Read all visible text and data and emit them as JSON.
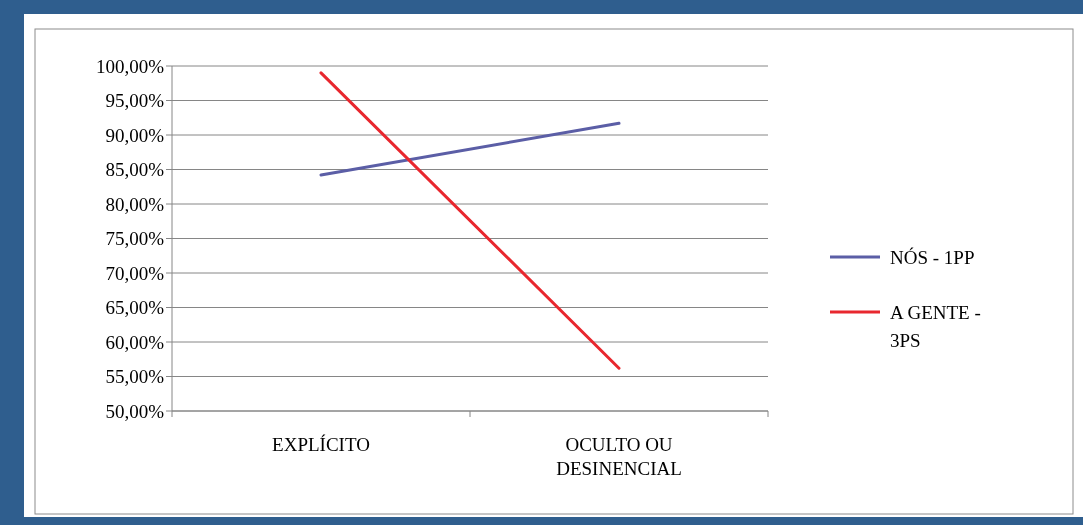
{
  "chart_data": {
    "type": "line",
    "categories": [
      "EXPLÍCITO",
      "OCULTO OU DESINENCIAL"
    ],
    "series": [
      {
        "name": "NÓS - 1PP",
        "color": "#5b5ea6",
        "values": [
          84.2,
          91.7
        ]
      },
      {
        "name": "A GENTE - 3PS",
        "color": "#e8272e",
        "values": [
          99.0,
          56.2
        ]
      }
    ],
    "ylim": [
      50,
      100
    ],
    "yticks": [
      {
        "value": 50,
        "label": "50,00%"
      },
      {
        "value": 55,
        "label": "55,00%"
      },
      {
        "value": 60,
        "label": "60,00%"
      },
      {
        "value": 65,
        "label": "65,00%"
      },
      {
        "value": 70,
        "label": "70,00%"
      },
      {
        "value": 75,
        "label": "75,00%"
      },
      {
        "value": 80,
        "label": "80,00%"
      },
      {
        "value": 85,
        "label": "85,00%"
      },
      {
        "value": 90,
        "label": "90,00%"
      },
      {
        "value": 95,
        "label": "95,00%"
      },
      {
        "value": 100,
        "label": "100,00%"
      }
    ],
    "grid": "y",
    "legend": "right",
    "marker": "none",
    "line_style": "solid"
  }
}
